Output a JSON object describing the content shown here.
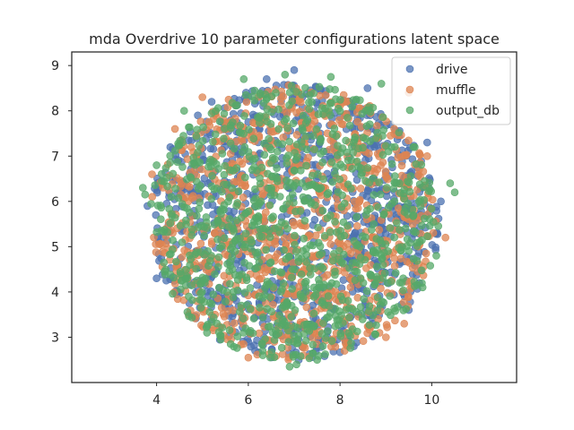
{
  "chart_data": {
    "type": "scatter",
    "title": "mda Overdrive 10 parameter configurations latent space",
    "xlabel": "",
    "ylabel": "",
    "xlim": [
      2.15,
      11.85
    ],
    "ylim": [
      2.0,
      9.3
    ],
    "x_ticks": [
      "4",
      "6",
      "8",
      "10"
    ],
    "y_ticks": [
      "3",
      "4",
      "5",
      "6",
      "7",
      "8",
      "9"
    ],
    "grid": false,
    "legend_position": "top-right",
    "marker_alpha": 0.75,
    "cloud": {
      "shape": "disk",
      "center": [
        7.0,
        5.55
      ],
      "radius_x": 3.15,
      "radius_y": 3.05,
      "points_per_series": 900
    },
    "series": [
      {
        "name": "drive",
        "color": "#4c72b0",
        "outliers": [
          [
            7.0,
            8.9
          ],
          [
            6.4,
            8.7
          ],
          [
            5.2,
            8.2
          ],
          [
            8.6,
            8.5
          ],
          [
            4.9,
            7.9
          ],
          [
            3.8,
            5.9
          ],
          [
            4.0,
            4.3
          ],
          [
            7.1,
            2.5
          ],
          [
            9.5,
            3.6
          ],
          [
            10.2,
            6.0
          ],
          [
            9.9,
            7.3
          ],
          [
            9.1,
            7.7
          ],
          [
            4.3,
            7.2
          ],
          [
            6.0,
            2.9
          ],
          [
            8.3,
            2.8
          ]
        ]
      },
      {
        "name": "muffle",
        "color": "#dd8452",
        "outliers": [
          [
            9.5,
            8.4
          ],
          [
            9.9,
            7.0
          ],
          [
            6.0,
            2.55
          ],
          [
            7.2,
            2.6
          ],
          [
            9.0,
            3.0
          ],
          [
            4.7,
            3.5
          ],
          [
            4.4,
            7.6
          ],
          [
            5.0,
            8.3
          ],
          [
            10.3,
            5.2
          ],
          [
            3.9,
            6.6
          ],
          [
            8.1,
            2.7
          ],
          [
            9.4,
            3.3
          ]
        ]
      },
      {
        "name": "output_db",
        "color": "#55a868",
        "outliers": [
          [
            3.7,
            6.3
          ],
          [
            3.75,
            6.15
          ],
          [
            6.9,
            2.35
          ],
          [
            7.05,
            2.4
          ],
          [
            7.5,
            2.5
          ],
          [
            5.9,
            8.7
          ],
          [
            6.8,
            8.8
          ],
          [
            10.4,
            6.4
          ],
          [
            10.5,
            6.2
          ],
          [
            9.6,
            7.2
          ],
          [
            4.0,
            6.8
          ],
          [
            4.6,
            8.0
          ],
          [
            5.1,
            3.1
          ],
          [
            9.8,
            4.1
          ],
          [
            8.9,
            8.6
          ],
          [
            7.8,
            8.75
          ],
          [
            5.4,
            2.95
          ],
          [
            10.1,
            4.8
          ]
        ]
      }
    ]
  }
}
